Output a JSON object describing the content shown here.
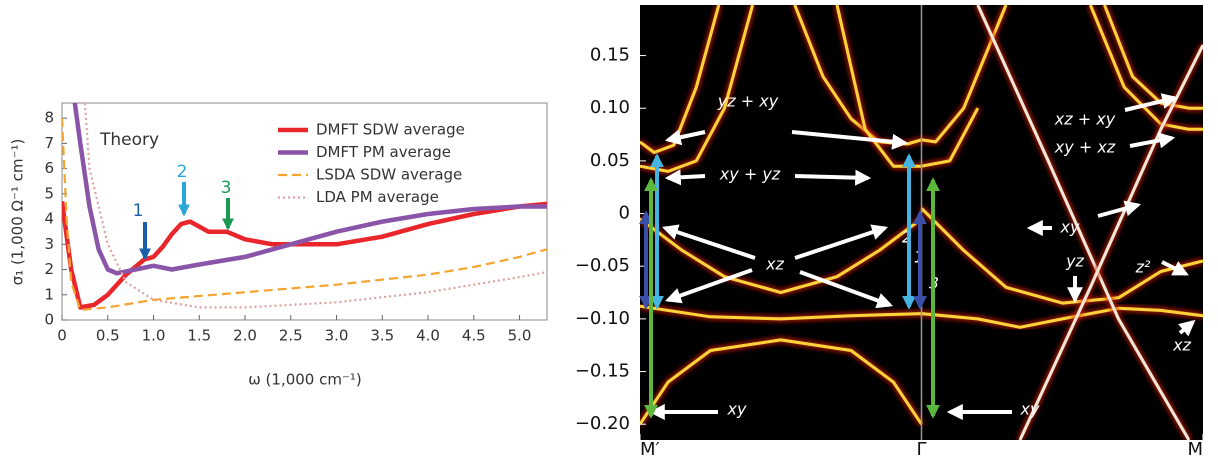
{
  "chart_data": [
    {
      "type": "line",
      "xlabel": "ω (1,000 cm⁻¹)",
      "ylabel": "σ₁ (1,000 Ω⁻¹ cm⁻¹)",
      "xlim": [
        0,
        5.3
      ],
      "ylim": [
        0,
        8.6
      ],
      "xticks": [
        0,
        0.5,
        {
          "value": 1,
          "label": "1.0"
        },
        1.5,
        {
          "value": 2,
          "label": "2.0"
        },
        2.5,
        {
          "value": 3,
          "label": "3.0"
        },
        3.5,
        {
          "value": 4,
          "label": "4.0"
        },
        4.5,
        {
          "value": 5,
          "label": "5.0"
        }
      ],
      "yticks": [
        0,
        1,
        2,
        3,
        4,
        5,
        6,
        7,
        8
      ],
      "legend": "upper right",
      "annotations": [
        "Theory",
        "1",
        "2",
        "3"
      ],
      "series": [
        {
          "name": "DMFT SDW average",
          "color": "#e8262b",
          "style": "solid",
          "x": [
            0,
            0.1,
            0.2,
            0.35,
            0.5,
            0.7,
            0.9,
            1.0,
            1.1,
            1.2,
            1.3,
            1.4,
            1.5,
            1.6,
            1.8,
            2.0,
            2.3,
            2.6,
            3.0,
            3.5,
            4.0,
            4.5,
            5.0,
            5.3
          ],
          "values": [
            4.7,
            2.0,
            0.5,
            0.6,
            1.0,
            1.8,
            2.4,
            2.5,
            2.9,
            3.4,
            3.8,
            3.9,
            3.7,
            3.5,
            3.5,
            3.2,
            3.0,
            3.0,
            3.0,
            3.3,
            3.8,
            4.2,
            4.5,
            4.6
          ]
        },
        {
          "name": "DMFT PM average",
          "color": "#8a55a8",
          "style": "solid",
          "x": [
            0.14,
            0.2,
            0.3,
            0.4,
            0.5,
            0.6,
            0.8,
            1.0,
            1.2,
            1.5,
            2.0,
            2.5,
            3.0,
            3.5,
            4.0,
            4.5,
            5.0,
            5.3
          ],
          "values": [
            8.6,
            7.0,
            4.5,
            2.8,
            2.0,
            1.85,
            2.0,
            2.15,
            2.0,
            2.2,
            2.5,
            3.0,
            3.5,
            3.9,
            4.2,
            4.4,
            4.5,
            4.5
          ]
        },
        {
          "name": "LSDA SDW average",
          "color": "#f4a531",
          "style": "dashed",
          "x": [
            0,
            0.05,
            0.1,
            0.2,
            0.5,
            1.0,
            2.0,
            3.0,
            4.0,
            4.5,
            5.0,
            5.3
          ],
          "values": [
            8.0,
            4.0,
            1.5,
            0.4,
            0.5,
            0.8,
            1.1,
            1.4,
            1.8,
            2.1,
            2.5,
            2.8
          ]
        },
        {
          "name": "LDA PM average",
          "color": "#e0a0a0",
          "style": "dotted",
          "x": [
            0.25,
            0.3,
            0.5,
            0.7,
            1.0,
            1.5,
            2.0,
            3.0,
            4.0,
            5.0,
            5.3
          ],
          "values": [
            8.6,
            6.0,
            3.0,
            1.5,
            0.8,
            0.5,
            0.5,
            0.7,
            1.1,
            1.7,
            1.9
          ]
        }
      ]
    },
    {
      "type": "bands",
      "xlim": [
        0,
        2
      ],
      "ylim": [
        -0.215,
        0.198
      ],
      "xticks": [
        {
          "value": 0,
          "label": "M′"
        },
        {
          "value": 1,
          "label": "Γ"
        },
        {
          "value": 2,
          "label": "M"
        }
      ],
      "yticks": [
        0.15,
        {
          "value": 0.1,
          "label": "0.10"
        },
        0.05,
        0,
        {
          "value": -0.05,
          "label": "−0.05"
        },
        {
          "value": -0.1,
          "label": "−0.10"
        },
        {
          "value": -0.15,
          "label": "−0.15"
        },
        {
          "value": -0.2,
          "label": "−0.20"
        }
      ],
      "background": "#000000",
      "annotations": [
        "yz + xy",
        "xy + yz",
        "xz",
        "xy",
        "xy",
        "xz + xy",
        "xy + xz",
        "xy",
        "z²",
        "yz",
        "xz",
        "1",
        "2",
        "3"
      ],
      "series": [
        {
          "color": "#ffd23a",
          "x": [
            0,
            0.05,
            0.12,
            0.2,
            0.28
          ],
          "values": [
            0.068,
            0.058,
            0.065,
            0.12,
            0.198
          ]
        },
        {
          "color": "#ffd23a",
          "x": [
            0,
            0.1,
            0.2,
            0.3,
            0.4
          ],
          "values": [
            0.045,
            0.04,
            0.05,
            0.1,
            0.198
          ]
        },
        {
          "color": "#ffd23a",
          "x": [
            0.55,
            0.65,
            0.75,
            0.85,
            0.95,
            1,
            1.05,
            1.15,
            1.3
          ],
          "values": [
            0.198,
            0.13,
            0.09,
            0.068,
            0.066,
            0.07,
            0.068,
            0.1,
            0.198
          ]
        },
        {
          "color": "#ffd23a",
          "x": [
            0.7,
            0.8,
            0.9,
            1,
            1.1,
            1.2
          ],
          "values": [
            0.198,
            0.08,
            0.045,
            0.045,
            0.05,
            0.1
          ]
        },
        {
          "color": "#ffd23a",
          "x": [
            0,
            0.15,
            0.3,
            0.5,
            0.7,
            0.85,
            1
          ],
          "values": [
            -0.005,
            -0.035,
            -0.06,
            -0.075,
            -0.06,
            -0.035,
            -0.005
          ]
        },
        {
          "color": "#ffd23a",
          "x": [
            0,
            0.25,
            0.5,
            0.75,
            1,
            1.2,
            1.35,
            1.5,
            1.7,
            1.85,
            2
          ],
          "values": [
            -0.088,
            -0.098,
            -0.1,
            -0.097,
            -0.095,
            -0.1,
            -0.108,
            -0.1,
            -0.09,
            -0.092,
            -0.097
          ]
        },
        {
          "color": "#ffd23a",
          "x": [
            0,
            0.1,
            0.25,
            0.5,
            0.75,
            0.9,
            1
          ],
          "values": [
            -0.2,
            -0.16,
            -0.13,
            -0.12,
            -0.13,
            -0.16,
            -0.2
          ]
        },
        {
          "color": "#ffd23a",
          "x": [
            1,
            1.15,
            1.3,
            1.5,
            1.7,
            1.85,
            2
          ],
          "values": [
            0.005,
            -0.035,
            -0.07,
            -0.085,
            -0.08,
            -0.055,
            -0.045
          ]
        },
        {
          "color": "#ffd23a",
          "x": [
            1.65,
            1.75,
            1.85,
            1.95,
            2
          ],
          "values": [
            0.198,
            0.13,
            0.105,
            0.1,
            0.1
          ]
        },
        {
          "color": "#ffd23a",
          "x": [
            1.6,
            1.72,
            1.85,
            1.95,
            2
          ],
          "values": [
            0.198,
            0.12,
            0.085,
            0.08,
            0.08
          ]
        },
        {
          "color": "#f3e6d8",
          "x": [
            1.2,
            1.45,
            1.7,
            1.95
          ],
          "values": [
            0.198,
            0.05,
            -0.1,
            -0.215
          ]
        },
        {
          "color": "#f3e6d8",
          "x": [
            1.35,
            1.6,
            1.85,
            2
          ],
          "values": [
            -0.215,
            -0.07,
            0.08,
            0.16
          ]
        }
      ]
    }
  ]
}
